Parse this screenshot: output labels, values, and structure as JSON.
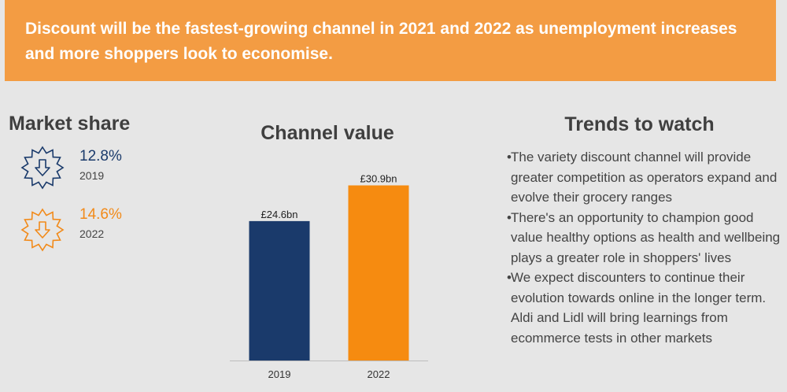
{
  "banner": {
    "text": "Discount will be the fastest-growing channel in 2021 and 2022 as unemployment increases and more shoppers look to economise."
  },
  "market_share": {
    "title": "Market share",
    "items": [
      {
        "value": "12.8%",
        "year": "2019",
        "color": "#1a3a6b"
      },
      {
        "value": "14.6%",
        "year": "2022",
        "color": "#f28a19"
      }
    ]
  },
  "trends": {
    "title": "Trends to watch",
    "bullets": [
      "The variety discount channel will provide greater competition as operators expand and evolve their grocery ranges",
      "There's an opportunity to champion good value healthy options as health and wellbeing plays a greater role in shoppers' lives",
      "We expect discounters to continue their evolution towards online in the longer term. Aldi and Lidl will bring learnings from ecommerce tests in other markets"
    ]
  },
  "chart_data": {
    "type": "bar",
    "title": "Channel value",
    "categories": [
      "2019",
      "2022"
    ],
    "values": [
      24.6,
      30.9
    ],
    "data_labels": [
      "£24.6bn",
      "£30.9bn"
    ],
    "colors": [
      "#1a3a6b",
      "#f68b10"
    ],
    "xlabel": "",
    "ylabel": "",
    "ylim": [
      0,
      35
    ],
    "grid": false
  }
}
